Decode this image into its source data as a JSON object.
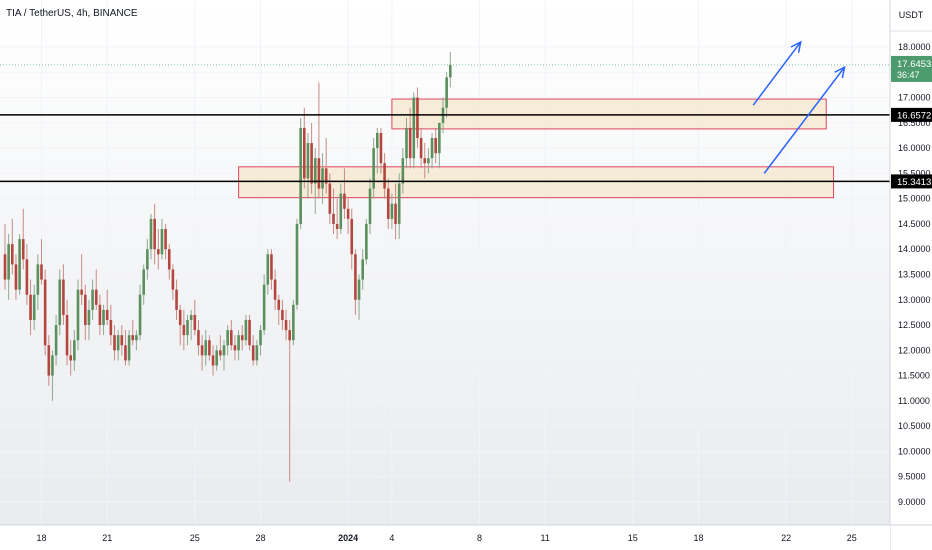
{
  "header": {
    "symbol": "TIA / TetherUS, 4h, BINANCE",
    "currency": "USDT"
  },
  "colors": {
    "up": "#26a69a",
    "up_body": "#5b8f5e",
    "down": "#b5463d",
    "zone_fill": "#f6e7cc",
    "zone_border": "#e0455e",
    "arrow": "#2962ff",
    "level_line": "#000000",
    "last_price_bg": "#4d9a6e"
  },
  "chart_data": {
    "type": "candlestick",
    "title": "TIA / TetherUS, 4h, BINANCE",
    "ylim": [
      8.75,
      18.3
    ],
    "y_ticks": [
      9,
      9.5,
      10,
      10.5,
      11,
      11.5,
      12,
      12.5,
      13,
      13.5,
      14,
      14.5,
      15,
      15.5,
      16,
      16.5,
      17,
      17.5,
      18
    ],
    "y_tick_labels": [
      "9.0000",
      "9.5000",
      "10.0000",
      "10.5000",
      "11.0000",
      "11.5000",
      "12.0000",
      "12.5000",
      "13.0000",
      "13.5000",
      "14.0000",
      "14.5000",
      "15.0000",
      "15.5000",
      "16.0000",
      "16.5000",
      "17.0000",
      "17.5000",
      "18.0000"
    ],
    "x_labels": [
      {
        "label": "18",
        "bar": 10
      },
      {
        "label": "21",
        "bar": 28
      },
      {
        "label": "25",
        "bar": 52
      },
      {
        "label": "28",
        "bar": 70
      },
      {
        "label": "2024",
        "bar": 94
      },
      {
        "label": "4",
        "bar": 106
      },
      {
        "label": "8",
        "bar": 130
      },
      {
        "label": "11",
        "bar": 148
      },
      {
        "label": "15",
        "bar": 172
      },
      {
        "label": "18",
        "bar": 190
      },
      {
        "label": "22",
        "bar": 214
      },
      {
        "label": "25",
        "bar": 232
      }
    ],
    "candles": [
      [
        13.9,
        14.5,
        13.2,
        13.4
      ],
      [
        13.4,
        14.3,
        13.0,
        14.1
      ],
      [
        14.1,
        14.6,
        13.5,
        13.7
      ],
      [
        13.7,
        13.9,
        13.0,
        13.2
      ],
      [
        13.2,
        14.3,
        13.1,
        14.2
      ],
      [
        14.2,
        14.8,
        13.6,
        13.8
      ],
      [
        13.8,
        14.1,
        12.9,
        13.1
      ],
      [
        13.1,
        13.4,
        12.3,
        12.6
      ],
      [
        12.6,
        13.3,
        12.4,
        13.1
      ],
      [
        13.1,
        13.9,
        12.8,
        13.7
      ],
      [
        13.7,
        14.2,
        13.3,
        13.4
      ],
      [
        13.4,
        13.6,
        11.9,
        12.1
      ],
      [
        12.1,
        12.3,
        11.3,
        11.5
      ],
      [
        11.5,
        12.0,
        11.0,
        11.9
      ],
      [
        11.9,
        12.7,
        11.7,
        12.5
      ],
      [
        12.5,
        13.6,
        12.3,
        13.4
      ],
      [
        13.4,
        13.7,
        12.5,
        12.7
      ],
      [
        12.7,
        13.0,
        11.7,
        11.9
      ],
      [
        11.9,
        12.2,
        11.5,
        11.8
      ],
      [
        11.8,
        12.4,
        11.6,
        12.2
      ],
      [
        12.2,
        13.4,
        12.0,
        13.2
      ],
      [
        13.2,
        13.9,
        12.9,
        13.1
      ],
      [
        13.1,
        13.3,
        12.2,
        12.5
      ],
      [
        12.5,
        13.0,
        12.2,
        12.8
      ],
      [
        12.8,
        13.4,
        12.6,
        13.2
      ],
      [
        13.2,
        13.6,
        12.8,
        12.9
      ],
      [
        12.9,
        13.1,
        12.3,
        12.5
      ],
      [
        12.5,
        12.9,
        12.3,
        12.8
      ],
      [
        12.8,
        13.2,
        12.5,
        12.6
      ],
      [
        12.6,
        12.9,
        12.1,
        12.3
      ],
      [
        12.3,
        12.5,
        11.8,
        12.0
      ],
      [
        12.0,
        12.4,
        11.8,
        12.3
      ],
      [
        12.3,
        12.5,
        11.9,
        12.1
      ],
      [
        12.1,
        12.4,
        11.7,
        11.8
      ],
      [
        11.8,
        12.4,
        11.7,
        12.3
      ],
      [
        12.3,
        12.6,
        12.1,
        12.2
      ],
      [
        12.2,
        12.4,
        12.0,
        12.3
      ],
      [
        12.3,
        13.3,
        12.2,
        13.1
      ],
      [
        13.1,
        13.7,
        12.9,
        13.6
      ],
      [
        13.6,
        14.2,
        13.4,
        14.0
      ],
      [
        14.0,
        14.7,
        13.8,
        14.6
      ],
      [
        14.6,
        14.9,
        13.7,
        14.0
      ],
      [
        14.0,
        14.4,
        13.6,
        13.9
      ],
      [
        13.9,
        14.6,
        13.8,
        14.4
      ],
      [
        14.4,
        14.5,
        13.8,
        14.0
      ],
      [
        14.0,
        14.1,
        13.4,
        13.6
      ],
      [
        13.6,
        13.7,
        13.0,
        13.2
      ],
      [
        13.2,
        13.4,
        12.6,
        12.8
      ],
      [
        12.8,
        12.9,
        12.1,
        12.5
      ],
      [
        12.5,
        12.8,
        12.0,
        12.3
      ],
      [
        12.3,
        12.7,
        12.1,
        12.6
      ],
      [
        12.6,
        12.8,
        12.2,
        12.7
      ],
      [
        12.7,
        13.0,
        12.3,
        12.4
      ],
      [
        12.4,
        12.6,
        11.9,
        12.1
      ],
      [
        12.1,
        12.3,
        11.6,
        11.9
      ],
      [
        11.9,
        12.4,
        11.7,
        12.2
      ],
      [
        12.2,
        12.3,
        11.8,
        11.9
      ],
      [
        11.9,
        12.1,
        11.5,
        11.7
      ],
      [
        11.7,
        12.1,
        11.6,
        12.0
      ],
      [
        12.0,
        12.3,
        11.8,
        11.9
      ],
      [
        11.9,
        12.2,
        11.6,
        12.1
      ],
      [
        12.1,
        12.5,
        11.9,
        12.4
      ],
      [
        12.4,
        12.6,
        12.0,
        12.1
      ],
      [
        12.1,
        12.3,
        11.8,
        12.0
      ],
      [
        12.0,
        12.4,
        11.8,
        12.3
      ],
      [
        12.3,
        12.5,
        12.0,
        12.2
      ],
      [
        12.2,
        12.7,
        12.1,
        12.6
      ],
      [
        12.6,
        12.7,
        12.0,
        12.1
      ],
      [
        12.1,
        12.3,
        11.7,
        11.8
      ],
      [
        11.8,
        12.2,
        11.7,
        12.1
      ],
      [
        12.1,
        12.5,
        11.9,
        12.4
      ],
      [
        12.4,
        13.5,
        12.3,
        13.3
      ],
      [
        13.3,
        14.0,
        13.1,
        13.9
      ],
      [
        13.9,
        14.0,
        13.2,
        13.4
      ],
      [
        13.4,
        13.6,
        12.8,
        13.0
      ],
      [
        13.0,
        13.1,
        12.5,
        12.8
      ],
      [
        12.8,
        13.0,
        12.4,
        12.6
      ],
      [
        12.6,
        12.8,
        12.2,
        12.4
      ],
      [
        12.4,
        12.6,
        9.4,
        12.2
      ],
      [
        12.2,
        13.0,
        12.1,
        12.9
      ],
      [
        12.9,
        14.6,
        12.8,
        14.5
      ],
      [
        14.5,
        16.6,
        14.4,
        16.4
      ],
      [
        16.4,
        16.8,
        15.2,
        15.4
      ],
      [
        15.4,
        16.3,
        15.0,
        16.1
      ],
      [
        16.1,
        16.5,
        15.1,
        15.3
      ],
      [
        15.3,
        16.0,
        14.7,
        15.8
      ],
      [
        15.8,
        17.3,
        15.0,
        15.2
      ],
      [
        15.2,
        15.9,
        14.9,
        15.6
      ],
      [
        15.6,
        16.2,
        15.1,
        15.3
      ],
      [
        15.3,
        15.5,
        14.5,
        14.7
      ],
      [
        14.7,
        15.2,
        14.3,
        14.5
      ],
      [
        14.5,
        15.0,
        14.2,
        14.4
      ],
      [
        14.4,
        15.3,
        14.3,
        15.1
      ],
      [
        15.1,
        15.6,
        14.6,
        14.8
      ],
      [
        14.8,
        15.0,
        14.3,
        14.6
      ],
      [
        14.6,
        14.8,
        13.6,
        13.9
      ],
      [
        13.9,
        14.0,
        12.7,
        13.0
      ],
      [
        13.0,
        13.5,
        12.6,
        13.4
      ],
      [
        13.4,
        14.0,
        13.2,
        13.8
      ],
      [
        13.8,
        14.6,
        13.7,
        14.5
      ],
      [
        14.5,
        15.4,
        14.3,
        15.2
      ],
      [
        15.2,
        16.2,
        15.0,
        16.0
      ],
      [
        16.0,
        16.4,
        15.5,
        16.3
      ],
      [
        16.3,
        16.4,
        15.5,
        15.7
      ],
      [
        15.7,
        15.9,
        15.0,
        15.2
      ],
      [
        15.2,
        15.4,
        14.4,
        14.6
      ],
      [
        14.6,
        15.1,
        14.4,
        14.9
      ],
      [
        14.9,
        15.3,
        14.2,
        14.5
      ],
      [
        14.5,
        15.5,
        14.2,
        15.3
      ],
      [
        15.3,
        16.0,
        15.1,
        15.8
      ],
      [
        15.8,
        16.6,
        15.6,
        16.4
      ],
      [
        16.4,
        16.8,
        15.6,
        15.8
      ],
      [
        15.8,
        17.1,
        15.6,
        17.0
      ],
      [
        17.0,
        17.2,
        16.0,
        16.2
      ],
      [
        16.2,
        16.4,
        15.6,
        15.8
      ],
      [
        15.8,
        16.1,
        15.4,
        15.7
      ],
      [
        15.7,
        16.0,
        15.5,
        15.8
      ],
      [
        15.8,
        16.3,
        15.6,
        16.2
      ],
      [
        16.2,
        16.4,
        15.7,
        15.9
      ],
      [
        15.9,
        16.5,
        15.6,
        16.5
      ],
      [
        16.5,
        17.0,
        16.3,
        16.8
      ],
      [
        16.8,
        17.5,
        16.6,
        17.4
      ],
      [
        17.4,
        17.9,
        17.2,
        17.6453
      ]
    ],
    "zones": [
      {
        "top": 16.97,
        "bottom": 16.38,
        "x_from_bar": 106,
        "x_to_bar": 225
      },
      {
        "top": 15.63,
        "bottom": 15.02,
        "x_from_bar": 64,
        "x_to_bar": 227
      }
    ],
    "levels": [
      {
        "value": 16.6572,
        "label": "16.6572"
      },
      {
        "value": 15.3413,
        "label": "15.3413"
      }
    ],
    "arrows": [
      {
        "from_bar": 205,
        "from_y": 16.85,
        "to_bar": 218,
        "to_y": 18.1
      },
      {
        "from_bar": 208,
        "from_y": 15.5,
        "to_bar": 230,
        "to_y": 17.6
      }
    ],
    "last_price": {
      "value": 17.6453,
      "label": "17.6453",
      "countdown": "36:47"
    },
    "grid": true
  }
}
